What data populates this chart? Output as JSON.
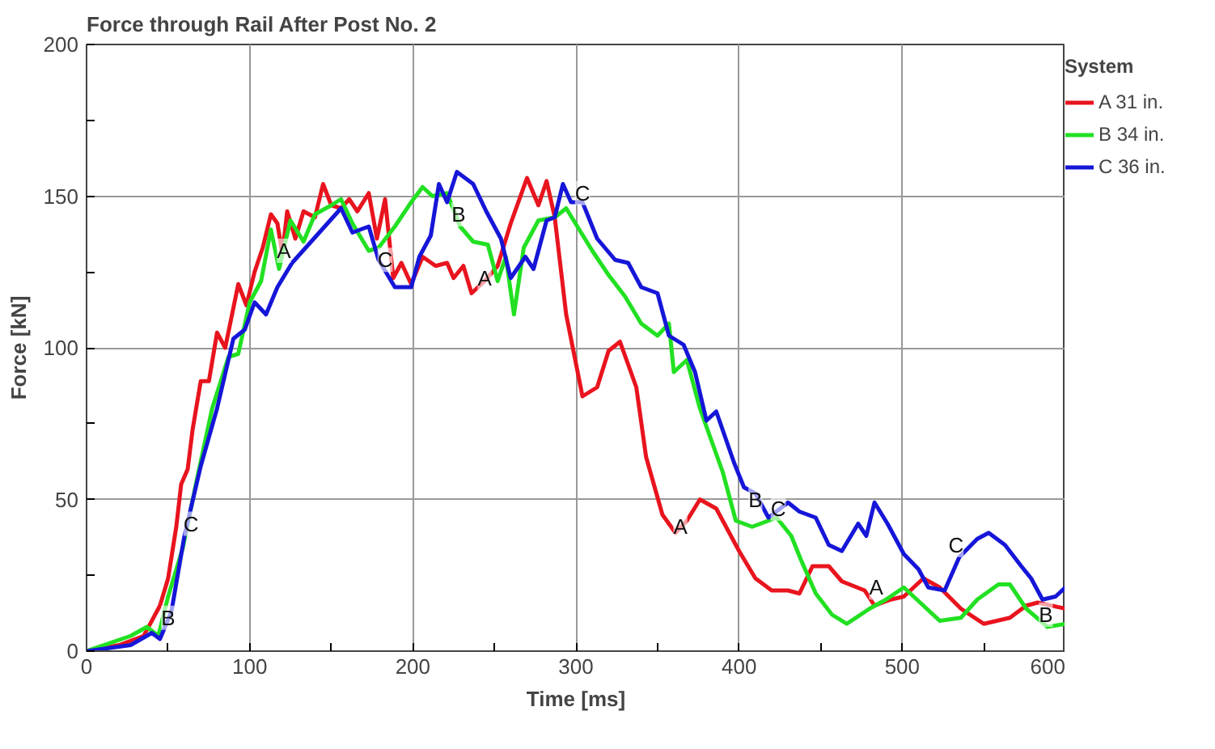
{
  "chart_data": {
    "type": "line",
    "title": "Force through Rail After Post No. 2",
    "xlabel": "Time [ms]",
    "ylabel": "Force [kN]",
    "legend_title": "System",
    "legend": "right",
    "grid": true,
    "line_style": "solid",
    "xlim": [
      0,
      600
    ],
    "ylim": [
      0,
      200
    ],
    "xticks": [
      0,
      100,
      200,
      300,
      400,
      500,
      600
    ],
    "yticks": [
      0,
      50,
      100,
      150,
      200
    ],
    "series": [
      {
        "name": "A 31 in.",
        "color": "#e8141e",
        "x": [
          0,
          20,
          35,
          45,
          50,
          55,
          58,
          62,
          65,
          70,
          75,
          80,
          85,
          93,
          98,
          103,
          108,
          113,
          117,
          120,
          123,
          128,
          133,
          140,
          145,
          150,
          156,
          161,
          166,
          173,
          178,
          183,
          188,
          193,
          199,
          206,
          214,
          221,
          225,
          231,
          236,
          244,
          252,
          260,
          270,
          277,
          282,
          287,
          294,
          304,
          313,
          320,
          327,
          337,
          343,
          353,
          361,
          368,
          376,
          386,
          400,
          410,
          420,
          430,
          437,
          445,
          455,
          463,
          477,
          483,
          493,
          501,
          513,
          523,
          536,
          550,
          566,
          576,
          583,
          600
        ],
        "values": [
          0,
          2,
          5,
          15,
          24,
          41,
          55,
          60,
          73,
          89,
          89,
          105,
          100,
          121,
          114,
          125,
          133,
          144,
          141,
          131,
          145,
          136,
          145,
          143,
          154,
          147,
          146,
          149,
          145,
          151,
          136,
          149,
          123,
          128,
          121,
          130,
          127,
          128,
          123,
          127,
          118,
          122,
          127,
          141,
          156,
          147,
          155,
          143,
          111,
          84,
          87,
          99,
          102,
          87,
          64,
          45,
          39,
          43,
          50,
          47,
          33,
          24,
          20,
          20,
          19,
          28,
          28,
          23,
          20,
          15,
          17,
          18,
          24,
          21,
          14,
          9,
          11,
          15,
          16,
          14
        ]
      },
      {
        "name": "B 34 in.",
        "color": "#22e022",
        "x": [
          0,
          27,
          37,
          44,
          50,
          59,
          67,
          77,
          87,
          93,
          100,
          107,
          113,
          118,
          125,
          133,
          140,
          150,
          156,
          163,
          173,
          179,
          189,
          199,
          206,
          212,
          221,
          229,
          237,
          246,
          252,
          257,
          262,
          268,
          277,
          287,
          294,
          302,
          310,
          320,
          330,
          340,
          350,
          357,
          360,
          368,
          376,
          390,
          398,
          408,
          423,
          432,
          438,
          447,
          457,
          466,
          480,
          490,
          501,
          513,
          523,
          536,
          546,
          559,
          566,
          576,
          589,
          600
        ],
        "values": [
          0,
          5,
          8,
          5,
          18,
          34,
          55,
          80,
          97,
          98,
          115,
          122,
          139,
          126,
          142,
          135,
          144,
          147,
          149,
          141,
          132,
          133,
          140,
          148,
          153,
          150,
          151,
          140,
          135,
          134,
          122,
          130,
          111,
          133,
          142,
          143,
          146,
          139,
          132,
          124,
          117,
          108,
          104,
          108,
          92,
          96,
          80,
          59,
          43,
          41,
          44,
          38,
          30,
          19,
          12,
          9,
          14,
          17,
          21,
          15,
          10,
          11,
          17,
          22,
          22,
          14,
          8,
          9
        ]
      },
      {
        "name": "C 36 in.",
        "color": "#1616d8",
        "x": [
          0,
          27,
          40,
          45,
          52,
          60,
          70,
          80,
          90,
          97,
          103,
          110,
          117,
          126,
          136,
          146,
          156,
          163,
          173,
          179,
          189,
          199,
          204,
          211,
          216,
          221,
          227,
          237,
          245,
          254,
          260,
          269,
          274,
          282,
          287,
          292,
          297,
          304,
          313,
          324,
          332,
          340,
          350,
          357,
          366,
          373,
          380,
          386,
          397,
          403,
          410,
          418,
          430,
          437,
          447,
          455,
          463,
          473,
          478,
          483,
          491,
          501,
          510,
          516,
          526,
          535,
          546,
          553,
          563,
          573,
          579,
          586,
          594,
          600
        ],
        "values": [
          0,
          2,
          6,
          4,
          13,
          38,
          61,
          80,
          103,
          106,
          115,
          111,
          120,
          128,
          134,
          140,
          146,
          138,
          140,
          129,
          120,
          120,
          130,
          137,
          154,
          148,
          158,
          154,
          145,
          136,
          123,
          130,
          126,
          142,
          143,
          154,
          148,
          148,
          136,
          129,
          128,
          120,
          118,
          104,
          101,
          92,
          76,
          79,
          62,
          54,
          52,
          44,
          49,
          46,
          44,
          35,
          33,
          42,
          38,
          49,
          42,
          32,
          27,
          21,
          20,
          31,
          37,
          39,
          35,
          28,
          24,
          17,
          18,
          21
        ]
      }
    ],
    "annotations": [
      {
        "text": "A",
        "x": 121,
        "y": 132
      },
      {
        "text": "A",
        "x": 244,
        "y": 123
      },
      {
        "text": "A",
        "x": 364,
        "y": 41
      },
      {
        "text": "A",
        "x": 484,
        "y": 21
      },
      {
        "text": "B",
        "x": 50,
        "y": 11
      },
      {
        "text": "B",
        "x": 228,
        "y": 144
      },
      {
        "text": "B",
        "x": 410,
        "y": 50
      },
      {
        "text": "B",
        "x": 588,
        "y": 12
      },
      {
        "text": "C",
        "x": 64,
        "y": 42
      },
      {
        "text": "C",
        "x": 183,
        "y": 129
      },
      {
        "text": "C",
        "x": 304,
        "y": 151
      },
      {
        "text": "C",
        "x": 424,
        "y": 47
      },
      {
        "text": "C",
        "x": 533,
        "y": 35
      }
    ]
  }
}
